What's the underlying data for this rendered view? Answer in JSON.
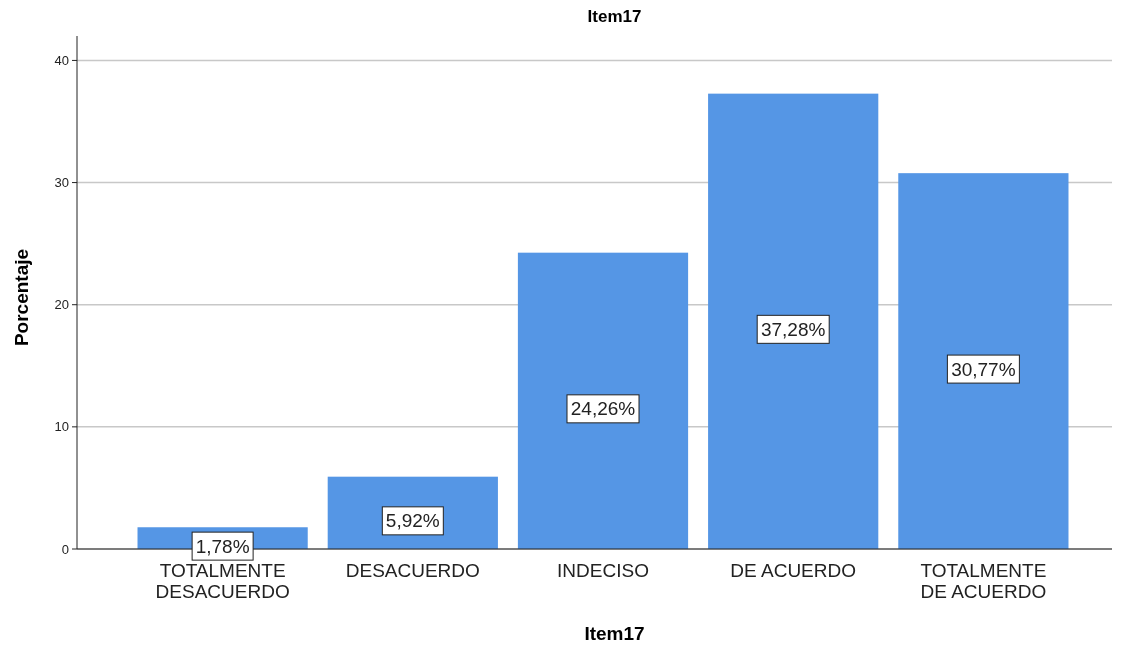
{
  "chart_data": {
    "type": "bar",
    "title": "Item17",
    "xlabel": "Item17",
    "ylabel": "Porcentaje",
    "categories": [
      "TOTALMENTE DESACUERDO",
      "DESACUERDO",
      "INDECISO",
      "DE ACUERDO",
      "TOTALMENTE DE ACUERDO"
    ],
    "values": [
      1.78,
      5.92,
      24.26,
      37.28,
      30.77
    ],
    "value_labels": [
      "1,78%",
      "5,92%",
      "24,26%",
      "37,28%",
      "30,77%"
    ],
    "color": "#5596e5",
    "ylim": [
      0,
      42
    ],
    "yticks": [
      0,
      10,
      20,
      30,
      40
    ],
    "grid": "y"
  }
}
